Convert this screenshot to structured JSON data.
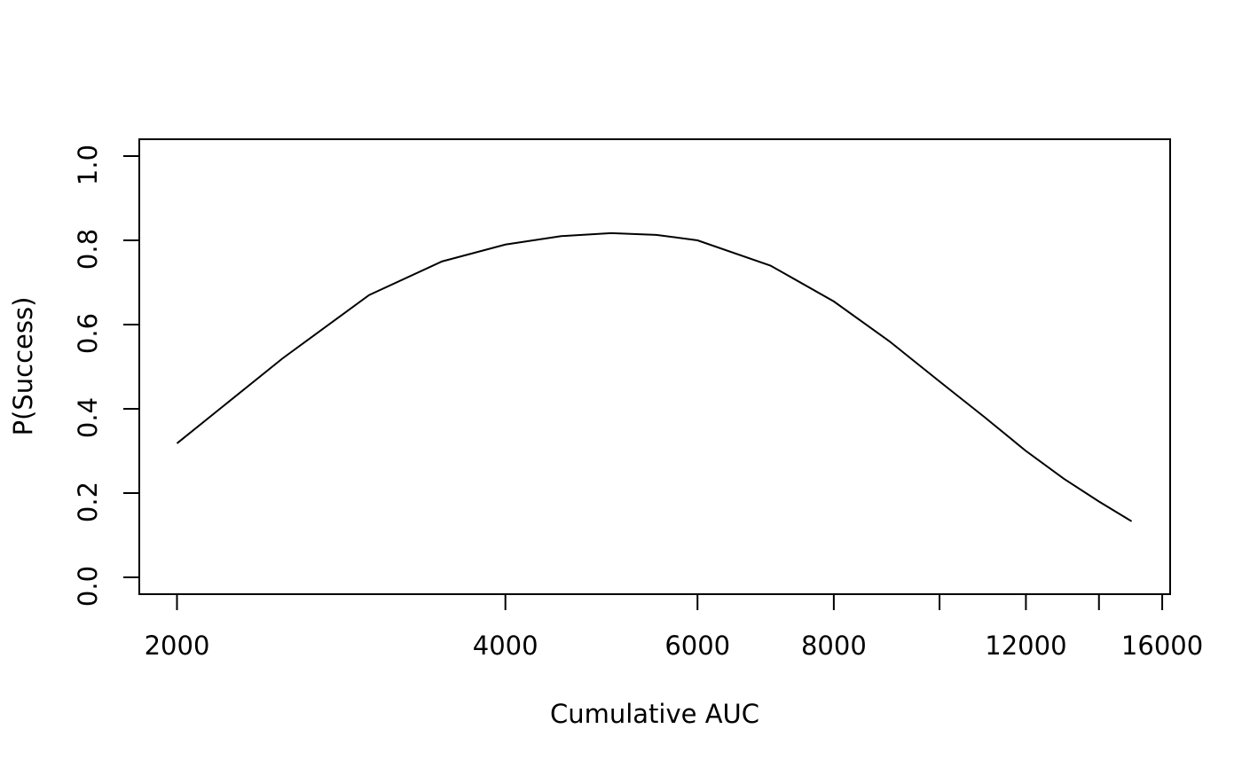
{
  "chart_data": {
    "type": "line",
    "xlabel": "Cumulative AUC",
    "ylabel": "P(Success)",
    "x": [
      2000,
      2500,
      3000,
      3500,
      4000,
      4500,
      5000,
      5500,
      6000,
      7000,
      8000,
      9000,
      10000,
      11000,
      12000,
      13000,
      14000,
      15000
    ],
    "values": [
      0.318,
      0.52,
      0.67,
      0.75,
      0.79,
      0.81,
      0.817,
      0.813,
      0.8,
      0.74,
      0.655,
      0.56,
      0.465,
      0.38,
      0.3,
      0.234,
      0.18,
      0.133
    ],
    "color": "#000000",
    "xscale": "log",
    "xlim": [
      1847,
      16270
    ],
    "ylim": [
      -0.04,
      1.04
    ],
    "xticks": [
      2000,
      4000,
      6000,
      8000,
      {
        "value": 10000,
        "label": null
      },
      12000,
      {
        "value": 14000,
        "label": null
      },
      16000
    ],
    "yticks": [
      {
        "value": 0,
        "label": "0.0"
      },
      0.2,
      0.4,
      0.6,
      0.8,
      {
        "value": 1,
        "label": "1.0"
      }
    ],
    "grid": false
  }
}
